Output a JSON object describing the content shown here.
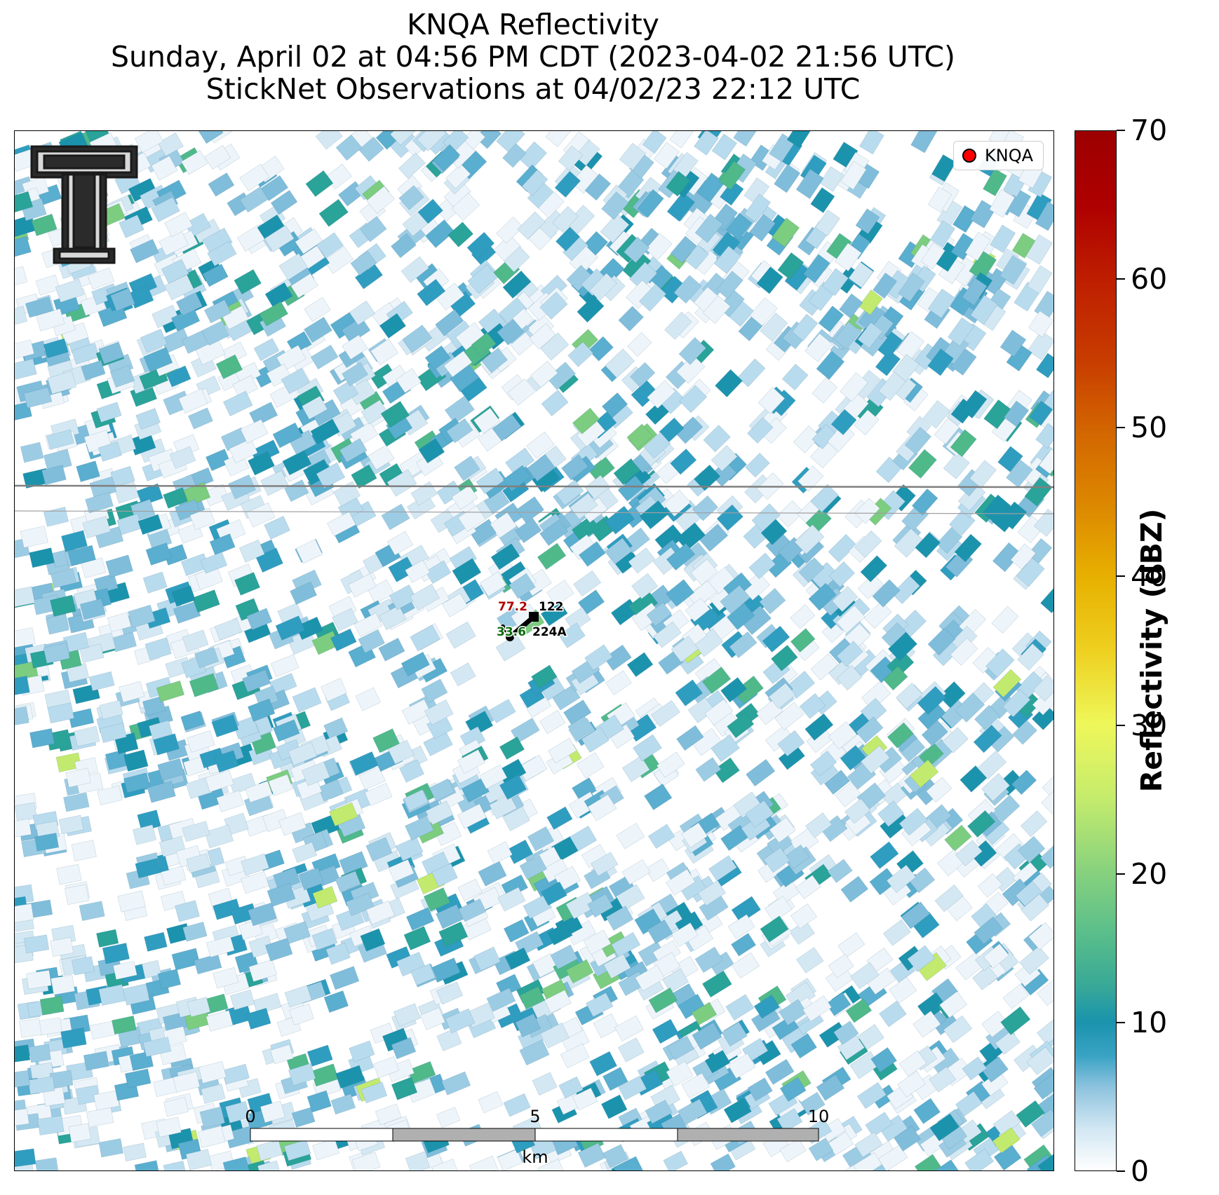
{
  "title": {
    "line1": "KNQA Reflectivity",
    "line2": "Sunday, April 02 at 04:56 PM CDT (2023-04-02 21:56 UTC)",
    "line3": "StickNet Observations at 04/02/23 22:12 UTC"
  },
  "legend": {
    "label": "KNQA",
    "marker_color": "#ff0000"
  },
  "logo": {
    "name": "Texas Tech University Double T",
    "icon": "double-t-logo"
  },
  "station": {
    "temperature": "77.2",
    "temperature_color": "#b00000",
    "dewpoint": "33.6",
    "dewpoint_color": "#0a6b0a",
    "probe_a_id": "122",
    "probe_b_id": "224A",
    "wind_icon": "wind-barb-icon"
  },
  "scale_bar": {
    "ticks": [
      "0",
      "5",
      "10"
    ],
    "unit": "km"
  },
  "colorbar": {
    "label": "Reflectivity (dBZ)",
    "min": 0,
    "max": 70,
    "ticks": [
      "0",
      "10",
      "20",
      "30",
      "40",
      "50",
      "60",
      "70"
    ],
    "stops": [
      "#ffffff",
      "#3aa3c4",
      "#1a93ad",
      "#86d17e",
      "#eef75a",
      "#e7b000",
      "#d26400",
      "#be1e00",
      "#9c0000"
    ]
  },
  "map_lines": {
    "color": "#808080",
    "description_icon": "county-boundary-lines"
  }
}
